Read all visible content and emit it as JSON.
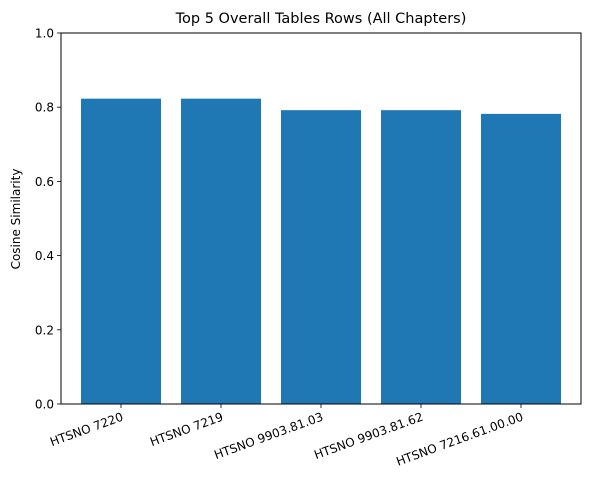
{
  "chart_data": {
    "type": "bar",
    "title": "Top 5 Overall Tables Rows (All Chapters)",
    "xlabel": "",
    "ylabel": "Cosine Similarity",
    "categories": [
      "HTSNO 7220",
      "HTSNO 7219",
      "HTSNO 9903.81.03",
      "HTSNO 9903.81.62",
      "HTSNO 7216.61.00.00"
    ],
    "values": [
      0.823,
      0.823,
      0.792,
      0.792,
      0.782
    ],
    "ylim": [
      0,
      1.0
    ],
    "yticks": [
      "0.0",
      "0.2",
      "0.4",
      "0.6",
      "0.8",
      "1.0"
    ],
    "bar_color": "#1f77b4",
    "grid": false,
    "legend": "none"
  }
}
